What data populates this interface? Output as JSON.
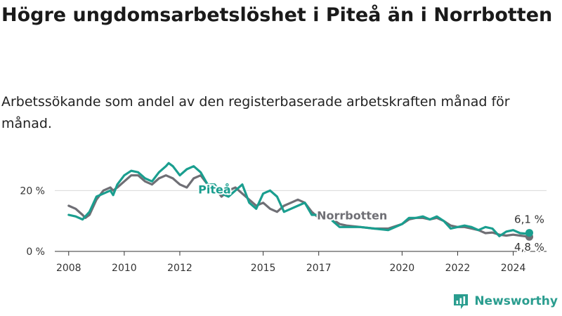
{
  "title": "Högre ungdomsarbetslöshet i Piteå än i Norrbotten",
  "subtitle": "Arbetssökande som andel av den registerbaserade arbetskraften månad för månad.",
  "brand": {
    "name": "Newsworthy",
    "color": "#2a9d8f"
  },
  "chart_data": {
    "type": "line",
    "title": "Högre ungdomsarbetslöshet i Piteå än i Norrbotten",
    "subtitle": "Arbetssökande som andel av den registerbaserade arbetskraften månad för månad.",
    "xlabel": "",
    "ylabel": "",
    "xlim": [
      2007.5,
      2025.2
    ],
    "ylim": [
      0,
      30
    ],
    "grid": "horizontal",
    "legend": "inline labels",
    "x_ticks": [
      2008,
      2010,
      2012,
      2015,
      2017,
      2020,
      2022,
      2024
    ],
    "y_ticks": [
      {
        "value": 0,
        "label": "0 %"
      },
      {
        "value": 20,
        "label": "20 %"
      }
    ],
    "series": [
      {
        "name": "Norrbotten",
        "color": "#6f6f75",
        "label_at": [
          2018.2,
          10.5
        ],
        "end_label": "4,8 %",
        "points": [
          [
            2008.0,
            15.0
          ],
          [
            2008.25,
            14.0
          ],
          [
            2008.5,
            12.0
          ],
          [
            2008.6,
            11.0
          ],
          [
            2008.75,
            12.0
          ],
          [
            2009.0,
            17.0
          ],
          [
            2009.25,
            20.0
          ],
          [
            2009.5,
            21.0
          ],
          [
            2009.6,
            20.0
          ],
          [
            2009.75,
            21.0
          ],
          [
            2010.0,
            23.0
          ],
          [
            2010.25,
            25.0
          ],
          [
            2010.5,
            25.0
          ],
          [
            2010.75,
            23.0
          ],
          [
            2011.0,
            22.0
          ],
          [
            2011.25,
            24.0
          ],
          [
            2011.5,
            25.0
          ],
          [
            2011.75,
            24.0
          ],
          [
            2012.0,
            22.0
          ],
          [
            2012.25,
            21.0
          ],
          [
            2012.5,
            24.0
          ],
          [
            2012.75,
            25.0
          ],
          [
            2013.0,
            22.0
          ],
          [
            2013.25,
            21.0
          ],
          [
            2013.5,
            18.0
          ],
          [
            2013.75,
            20.0
          ],
          [
            2014.0,
            21.0
          ],
          [
            2014.25,
            19.0
          ],
          [
            2014.5,
            17.0
          ],
          [
            2014.75,
            15.0
          ],
          [
            2015.0,
            16.0
          ],
          [
            2015.25,
            14.0
          ],
          [
            2015.5,
            13.0
          ],
          [
            2015.75,
            15.0
          ],
          [
            2016.0,
            16.0
          ],
          [
            2016.25,
            17.0
          ],
          [
            2016.5,
            16.0
          ],
          [
            2016.75,
            13.0
          ],
          [
            2017.0,
            11.0
          ],
          [
            2017.25,
            11.5
          ],
          [
            2017.5,
            10.5
          ],
          [
            2017.75,
            9.0
          ],
          [
            2018.0,
            8.5
          ],
          [
            2018.5,
            8.0
          ],
          [
            2019.0,
            7.5
          ],
          [
            2019.5,
            7.5
          ],
          [
            2020.0,
            9.0
          ],
          [
            2020.25,
            10.5
          ],
          [
            2020.5,
            11.0
          ],
          [
            2020.75,
            11.0
          ],
          [
            2021.0,
            10.5
          ],
          [
            2021.25,
            11.0
          ],
          [
            2021.5,
            10.0
          ],
          [
            2021.75,
            8.5
          ],
          [
            2022.0,
            8.0
          ],
          [
            2022.25,
            8.0
          ],
          [
            2022.5,
            7.5
          ],
          [
            2022.75,
            7.0
          ],
          [
            2023.0,
            6.0
          ],
          [
            2023.25,
            6.2
          ],
          [
            2023.5,
            5.5
          ],
          [
            2023.75,
            5.2
          ],
          [
            2024.0,
            5.5
          ],
          [
            2024.25,
            5.2
          ],
          [
            2024.5,
            4.9
          ],
          [
            2024.58,
            4.8
          ]
        ]
      },
      {
        "name": "Piteå",
        "color": "#1a9e8f",
        "label_at": [
          2013.25,
          19.0
        ],
        "end_label": "6,1 %",
        "points": [
          [
            2008.0,
            12.0
          ],
          [
            2008.25,
            11.5
          ],
          [
            2008.5,
            10.5
          ],
          [
            2008.75,
            13.0
          ],
          [
            2009.0,
            18.0
          ],
          [
            2009.25,
            19.0
          ],
          [
            2009.5,
            20.0
          ],
          [
            2009.6,
            18.5
          ],
          [
            2009.75,
            22.0
          ],
          [
            2010.0,
            25.0
          ],
          [
            2010.25,
            26.5
          ],
          [
            2010.5,
            26.0
          ],
          [
            2010.75,
            24.0
          ],
          [
            2011.0,
            23.0
          ],
          [
            2011.25,
            26.0
          ],
          [
            2011.5,
            28.0
          ],
          [
            2011.6,
            29.0
          ],
          [
            2011.75,
            28.0
          ],
          [
            2012.0,
            25.0
          ],
          [
            2012.25,
            27.0
          ],
          [
            2012.5,
            28.0
          ],
          [
            2012.75,
            26.0
          ],
          [
            2013.0,
            22.0
          ],
          [
            2013.25,
            22.0
          ],
          [
            2013.5,
            19.0
          ],
          [
            2013.75,
            18.0
          ],
          [
            2014.0,
            20.0
          ],
          [
            2014.25,
            22.0
          ],
          [
            2014.5,
            16.0
          ],
          [
            2014.75,
            14.0
          ],
          [
            2015.0,
            19.0
          ],
          [
            2015.25,
            20.0
          ],
          [
            2015.5,
            18.0
          ],
          [
            2015.75,
            13.0
          ],
          [
            2016.0,
            14.0
          ],
          [
            2016.25,
            15.0
          ],
          [
            2016.5,
            16.0
          ],
          [
            2016.75,
            12.0
          ],
          [
            2017.0,
            12.0
          ],
          [
            2017.25,
            12.5
          ],
          [
            2017.5,
            10.0
          ],
          [
            2017.75,
            8.0
          ],
          [
            2018.0,
            8.0
          ],
          [
            2018.5,
            8.0
          ],
          [
            2019.0,
            7.5
          ],
          [
            2019.5,
            7.0
          ],
          [
            2020.0,
            9.0
          ],
          [
            2020.25,
            11.0
          ],
          [
            2020.5,
            11.0
          ],
          [
            2020.75,
            11.5
          ],
          [
            2021.0,
            10.5
          ],
          [
            2021.25,
            11.5
          ],
          [
            2021.5,
            10.0
          ],
          [
            2021.75,
            7.5
          ],
          [
            2022.0,
            8.0
          ],
          [
            2022.25,
            8.5
          ],
          [
            2022.5,
            8.0
          ],
          [
            2022.75,
            7.0
          ],
          [
            2023.0,
            8.0
          ],
          [
            2023.25,
            7.5
          ],
          [
            2023.5,
            5.0
          ],
          [
            2023.75,
            6.5
          ],
          [
            2024.0,
            7.0
          ],
          [
            2024.25,
            6.0
          ],
          [
            2024.5,
            5.8
          ],
          [
            2024.58,
            6.1
          ]
        ]
      }
    ]
  }
}
